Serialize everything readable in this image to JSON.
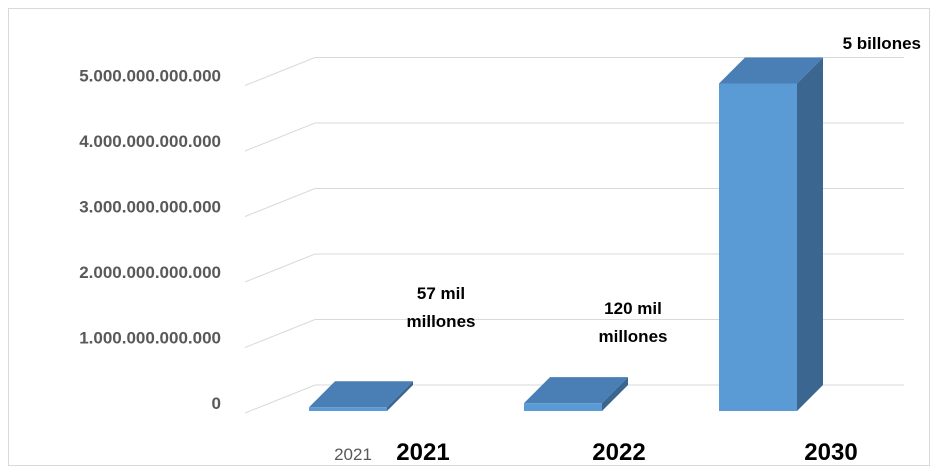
{
  "chart_data": {
    "type": "bar",
    "categories": [
      "2021",
      "2022",
      "2030"
    ],
    "extra_category_label": "2021",
    "values": [
      57000000000,
      120000000000,
      5000000000000
    ],
    "data_labels": [
      [
        "57 mil",
        "millones"
      ],
      [
        "120 mil",
        "millones"
      ],
      [
        "5 billones"
      ]
    ],
    "yticks": [
      0,
      1000000000000,
      2000000000000,
      3000000000000,
      4000000000000,
      5000000000000
    ],
    "ytick_labels": [
      "0",
      "1.000.000.000.000",
      "2.000.000.000.000",
      "3.000.000.000.000",
      "4.000.000.000.000",
      "5.000.000.000.000"
    ],
    "ylim": [
      0,
      5000000000000
    ],
    "grid": true,
    "style": "3d-column",
    "colors": {
      "front": "#5b9bd5",
      "top": "#4a7fb5",
      "side": "#3a6690",
      "grid": "#d9d9d9"
    }
  }
}
